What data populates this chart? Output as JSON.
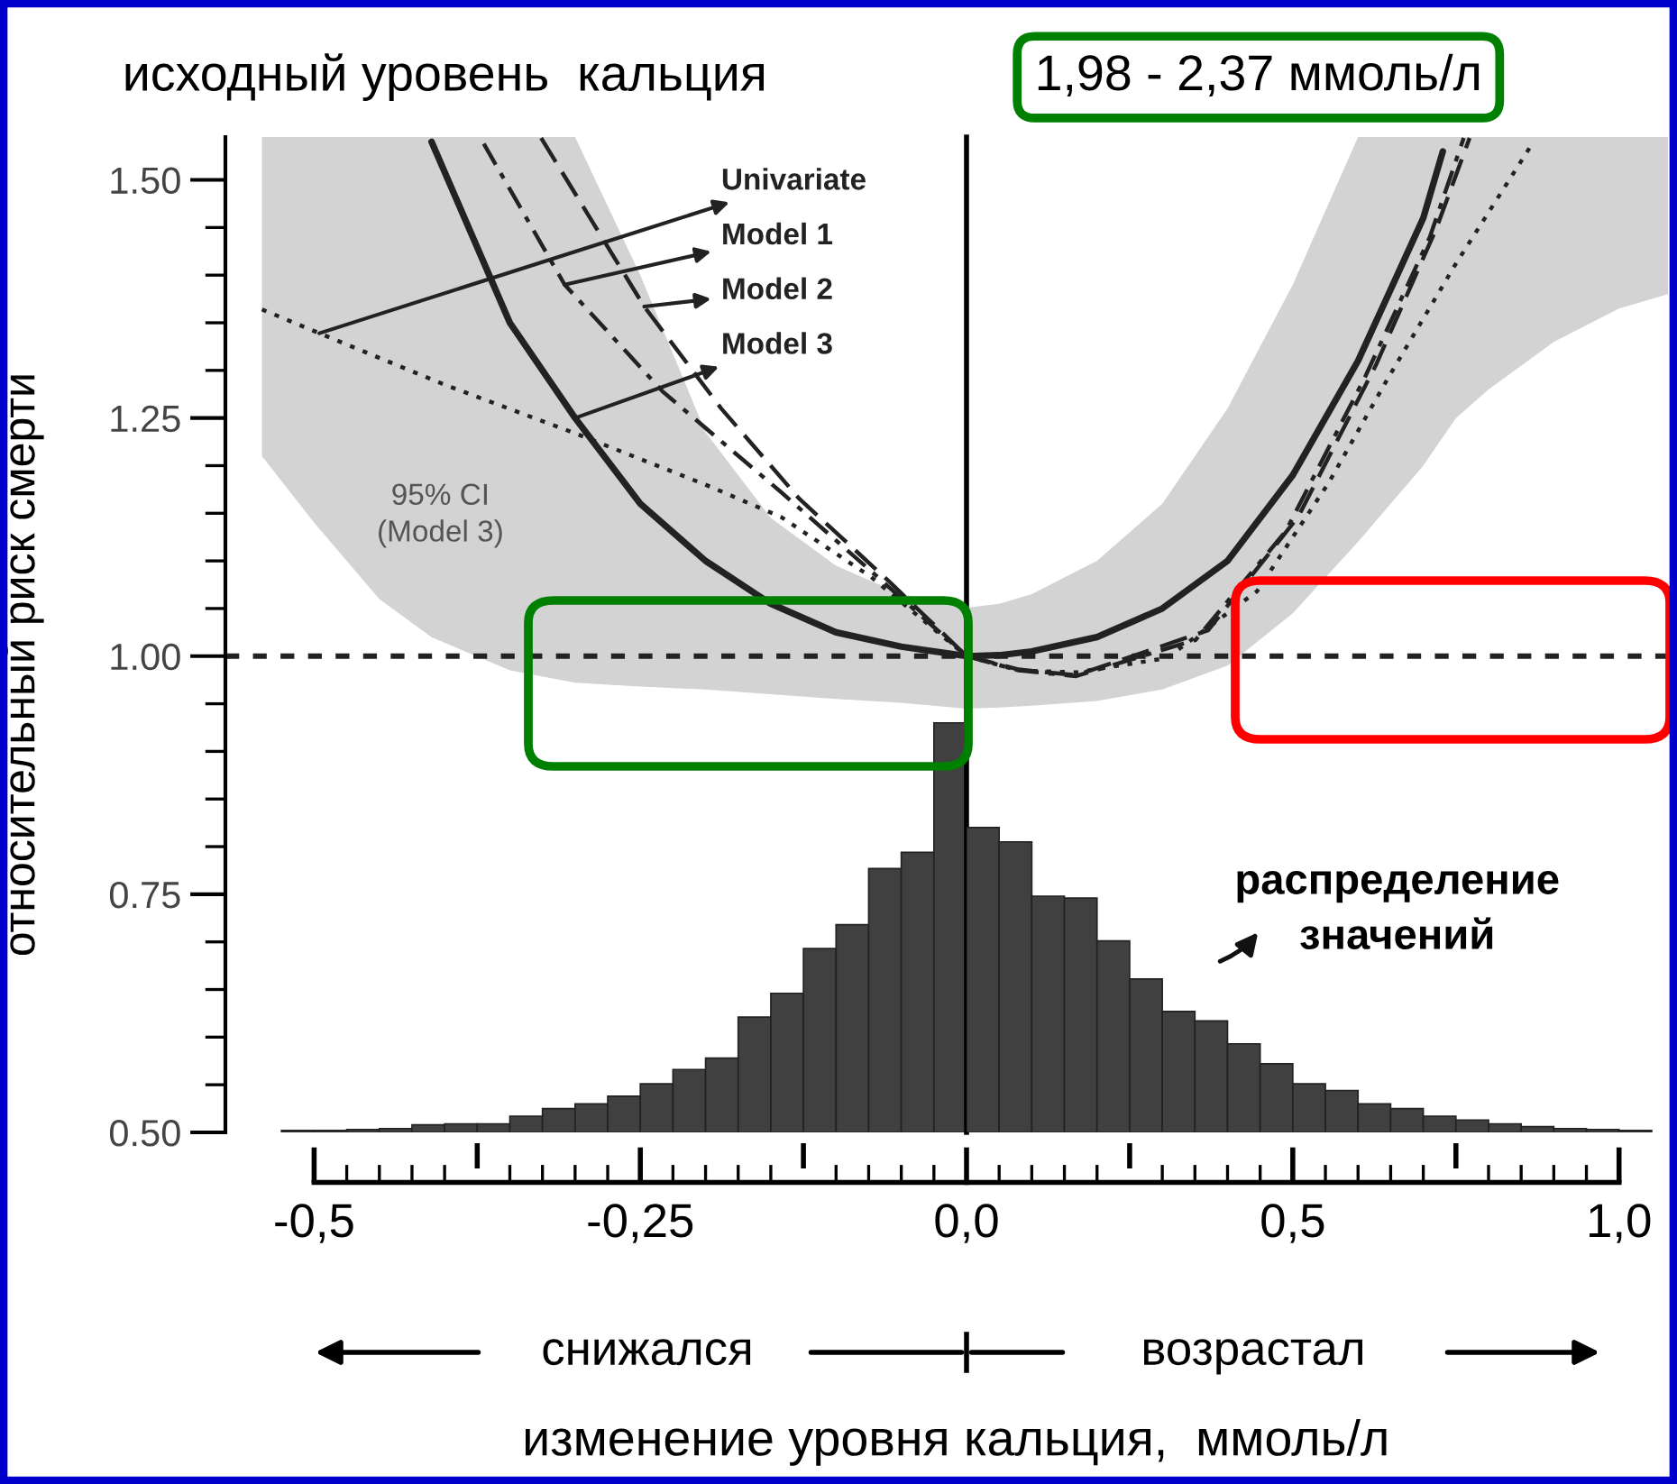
{
  "chart_data": [
    {
      "type": "line",
      "title": "исходный уровень  кальция",
      "grid": false,
      "legend": "top",
      "ylabel": "относительный риск смерти",
      "xlim": [
        -0.568,
        0
      ],
      "ylim": [
        0.5,
        1.545
      ],
      "xticks": [
        {
          "value": -0.5,
          "label": "-0,5"
        },
        {
          "value": -0.25,
          "label": "-0,25"
        },
        {
          "value": 0,
          "label": "0,0"
        }
      ],
      "yticks": [
        {
          "value": 0.5,
          "label": "0.50"
        },
        {
          "value": 0.75,
          "label": "0.75"
        },
        {
          "value": 1.0,
          "label": "1.00"
        },
        {
          "value": 1.25,
          "label": "1.25"
        },
        {
          "value": 1.5,
          "label": "1.50"
        }
      ],
      "series": [
        {
          "type": "histogram",
          "color": "#404040",
          "bins": [
            -0.525,
            -0.5,
            -0.475,
            -0.45,
            -0.425,
            -0.4,
            -0.375,
            -0.35,
            -0.325,
            -0.3,
            -0.275,
            -0.25,
            -0.225,
            -0.2,
            -0.175,
            -0.15,
            -0.125,
            -0.1,
            -0.075,
            -0.05,
            -0.025,
            0
          ],
          "values": [
            0.502,
            0.502,
            0.503,
            0.504,
            0.508,
            0.509,
            0.509,
            0.517,
            0.525,
            0.53,
            0.538,
            0.551,
            0.566,
            0.578,
            0.621,
            0.646,
            0.693,
            0.718,
            0.777,
            0.794,
            0.93
          ]
        },
        {
          "name": "Univariate",
          "line_style": "dotted",
          "color": "#222222",
          "x": [
            -0.54,
            -0.496,
            -0.4,
            -0.302,
            -0.2,
            -0.142,
            -0.073,
            0
          ],
          "values": [
            1.364,
            1.339,
            1.285,
            1.235,
            1.18,
            1.146,
            1.083,
            1.0
          ]
        },
        {
          "name": "Model 1",
          "line_style": "dashdot",
          "color": "#222222",
          "x": [
            -0.37,
            -0.308,
            -0.233,
            -0.142,
            -0.073,
            0
          ],
          "values": [
            1.538,
            1.39,
            1.278,
            1.172,
            1.089,
            1.0
          ]
        },
        {
          "name": "Model 2",
          "line_style": "dashed",
          "color": "#222222",
          "x": [
            -0.326,
            -0.247,
            -0.188,
            -0.128,
            -0.059,
            0
          ],
          "values": [
            1.544,
            1.367,
            1.26,
            1.165,
            1.078,
            1.0
          ]
        },
        {
          "name": "Model 3",
          "line_style": "solid",
          "color": "#222222",
          "x": [
            -0.54,
            -0.5,
            -0.45,
            -0.41,
            -0.35,
            -0.3,
            -0.25,
            -0.2,
            -0.15,
            -0.1,
            -0.05,
            0
          ],
          "values": [
            null,
            null,
            null,
            1.54,
            1.35,
            1.25,
            1.16,
            1.1,
            1.055,
            1.025,
            1.01,
            1.0
          ],
          "lower": [
            1.21,
            1.14,
            1.06,
            1.02,
            0.985,
            0.972,
            0.968,
            0.965,
            0.96,
            0.955,
            0.951,
            0.945
          ],
          "upper": [
            1.545,
            1.545,
            1.545,
            1.545,
            1.545,
            1.545,
            1.4,
            1.235,
            1.145,
            1.095,
            1.065,
            1.051
          ]
        }
      ],
      "ref_lines": [
        {
          "axis": "y",
          "value": 1.0,
          "color": "#222222",
          "line_style": "dotted"
        },
        {
          "axis": "x",
          "value": 0,
          "color": "#000000",
          "line_style": "solid"
        }
      ],
      "annotations": [
        "95% CI\n(Model 3)",
        "снижался"
      ]
    },
    {
      "type": "line",
      "title": "1,98 - 2,37 ммоль/л",
      "grid": false,
      "legend": false,
      "xlabel": "изменение уровня кальция,  ммоль/л",
      "xlim": [
        0,
        1.075
      ],
      "ylim": [
        0.5,
        1.545
      ],
      "xticks": [
        {
          "value": 0.5,
          "label": "0,5"
        },
        {
          "value": 1.0,
          "label": "1,0"
        }
      ],
      "tick_labels": "x",
      "series": [
        {
          "type": "histogram",
          "color": "#404040",
          "bins": [
            0,
            0.05,
            0.1,
            0.15,
            0.2,
            0.25,
            0.3,
            0.35,
            0.4,
            0.45,
            0.5,
            0.55,
            0.6,
            0.65,
            0.7,
            0.75,
            0.8,
            0.85,
            0.9,
            0.95,
            1.0,
            1.05
          ],
          "values": [
            0.82,
            0.805,
            0.748,
            0.746,
            0.701,
            0.661,
            0.627,
            0.617,
            0.593,
            0.572,
            0.551,
            0.544,
            0.53,
            0.525,
            0.517,
            0.513,
            0.509,
            0.506,
            0.504,
            0.503,
            0.502
          ]
        },
        {
          "line_style": "dotted",
          "color": "#222222",
          "x": [
            0,
            0.08,
            0.168,
            0.307,
            0.445,
            0.555,
            0.646,
            0.749,
            0.867
          ],
          "values": [
            1.0,
            0.985,
            0.983,
            0.998,
            1.068,
            1.182,
            1.292,
            1.411,
            1.538
          ]
        },
        {
          "line_style": "dashdot",
          "color": "#222222",
          "x": [
            0,
            0.08,
            0.168,
            0.351,
            0.489,
            0.61,
            0.71,
            0.762
          ],
          "values": [
            1.0,
            0.985,
            0.979,
            1.017,
            1.131,
            1.292,
            1.44,
            1.544
          ]
        },
        {
          "line_style": "dashed",
          "color": "#222222",
          "x": [
            0,
            0.08,
            0.168,
            0.37,
            0.508,
            0.627,
            0.72,
            0.771
          ],
          "values": [
            1.0,
            0.986,
            0.98,
            1.027,
            1.146,
            1.305,
            1.449,
            1.544
          ]
        },
        {
          "line_style": "solid",
          "color": "#222222",
          "x": [
            0,
            0.05,
            0.1,
            0.2,
            0.3,
            0.4,
            0.5,
            0.6,
            0.7,
            0.73,
            0.75,
            0.8,
            0.9,
            1.0,
            1.075
          ],
          "values": [
            1.0,
            1.001,
            1.005,
            1.02,
            1.05,
            1.1,
            1.19,
            1.31,
            1.46,
            1.53,
            null,
            null,
            null,
            null,
            null
          ],
          "lower": [
            0.945,
            0.946,
            0.948,
            0.953,
            0.965,
            0.99,
            1.045,
            1.12,
            1.2,
            1.23,
            1.25,
            1.28,
            1.33,
            1.365,
            1.38
          ],
          "upper": [
            1.051,
            1.055,
            1.065,
            1.1,
            1.16,
            1.26,
            1.39,
            1.545,
            1.545,
            1.545,
            1.545,
            1.545,
            1.545,
            1.545,
            1.545
          ]
        }
      ],
      "ref_lines": [
        {
          "axis": "y",
          "value": 1.0,
          "color": "#222222",
          "line_style": "dotted"
        }
      ],
      "annotations": [
        "распределение\nзначений",
        "возрастал"
      ]
    }
  ]
}
